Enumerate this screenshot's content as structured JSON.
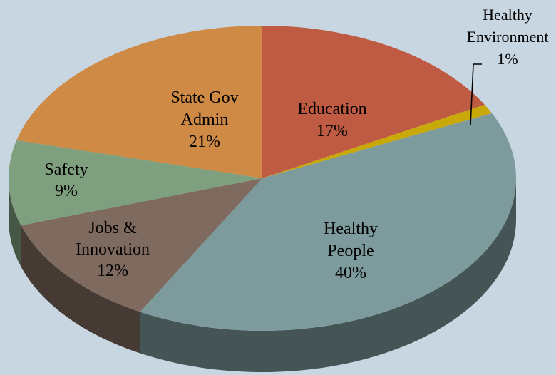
{
  "chart_data": {
    "type": "pie",
    "style": "3d",
    "slices": [
      {
        "name": "Education",
        "value": 17,
        "label": "17%",
        "color": "#bf5a43",
        "label_lines": [
          "Education",
          "17%"
        ]
      },
      {
        "name": "Healthy Environment",
        "value": 1,
        "label": "1%",
        "color": "#c9a80a",
        "label_lines": [
          "Healthy",
          "Environment",
          "1%"
        ]
      },
      {
        "name": "Healthy People",
        "value": 40,
        "label": "40%",
        "color": "#7d9b9c",
        "label_lines": [
          "Healthy",
          "People",
          "40%"
        ]
      },
      {
        "name": "Jobs & Innovation",
        "value": 12,
        "label": "12%",
        "color": "#7e6a5f",
        "label_lines": [
          "Jobs &",
          "Innovation",
          "12%"
        ]
      },
      {
        "name": "Safety",
        "value": 9,
        "label": "9%",
        "color": "#7fa07e",
        "label_lines": [
          "Safety",
          "9%"
        ]
      },
      {
        "name": "State Gov Admin",
        "value": 21,
        "label": "21%",
        "color": "#cf8a45",
        "label_lines": [
          "State Gov",
          "Admin",
          "21%"
        ]
      }
    ],
    "legend": "none"
  },
  "colors": {
    "background": "#c8d6e2",
    "leader_line": "#000000"
  }
}
